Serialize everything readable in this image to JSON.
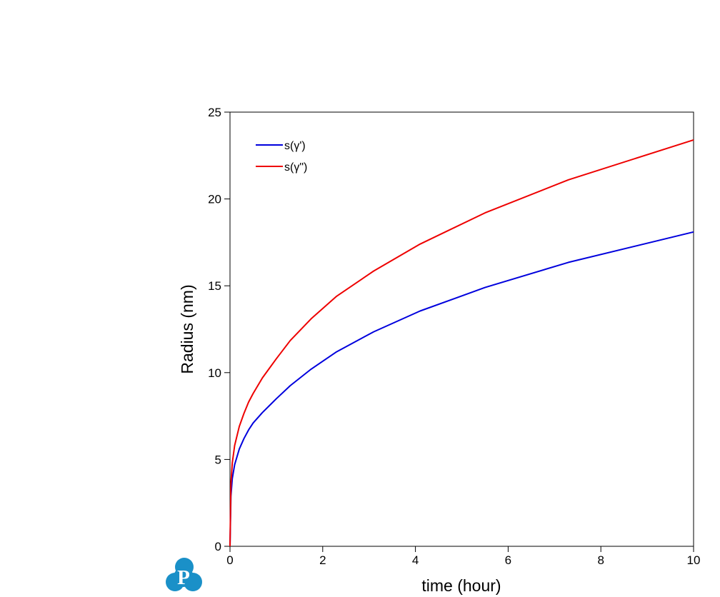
{
  "chart_data": {
    "type": "line",
    "title": "",
    "xlabel": "time (hour)",
    "ylabel": "Radius (nm)",
    "xlim": [
      0,
      10
    ],
    "ylim": [
      0,
      25
    ],
    "xticks": [
      "0",
      "2",
      "4",
      "6",
      "8",
      "10"
    ],
    "yticks": [
      "0",
      "5",
      "10",
      "15",
      "20",
      "25"
    ],
    "grid": false,
    "legend": "top-left",
    "series": [
      {
        "name": "s(γ')",
        "color": "#0000dd",
        "x": [
          0,
          0.02,
          0.05,
          0.1,
          0.2,
          0.3,
          0.4,
          0.5,
          0.7,
          1.0,
          1.3,
          1.75,
          2.3,
          3.1,
          4.1,
          5.5,
          7.3,
          10.0
        ],
        "y": [
          0,
          2.9,
          3.9,
          4.7,
          5.6,
          6.2,
          6.7,
          7.1,
          7.7,
          8.5,
          9.25,
          10.2,
          11.2,
          12.35,
          13.55,
          14.9,
          16.35,
          18.1
        ]
      },
      {
        "name": "s(γ\")",
        "color": "#ee0000",
        "x": [
          0,
          0.02,
          0.05,
          0.1,
          0.2,
          0.3,
          0.4,
          0.5,
          0.7,
          1.0,
          1.3,
          1.75,
          2.3,
          3.1,
          4.1,
          5.5,
          7.3,
          10.0
        ],
        "y": [
          0,
          3.6,
          4.8,
          5.8,
          6.9,
          7.65,
          8.3,
          8.8,
          9.7,
          10.8,
          11.85,
          13.1,
          14.4,
          15.85,
          17.4,
          19.2,
          21.1,
          23.4
        ]
      }
    ]
  },
  "logo": {
    "letter": "P",
    "color": "#1a90c8"
  }
}
